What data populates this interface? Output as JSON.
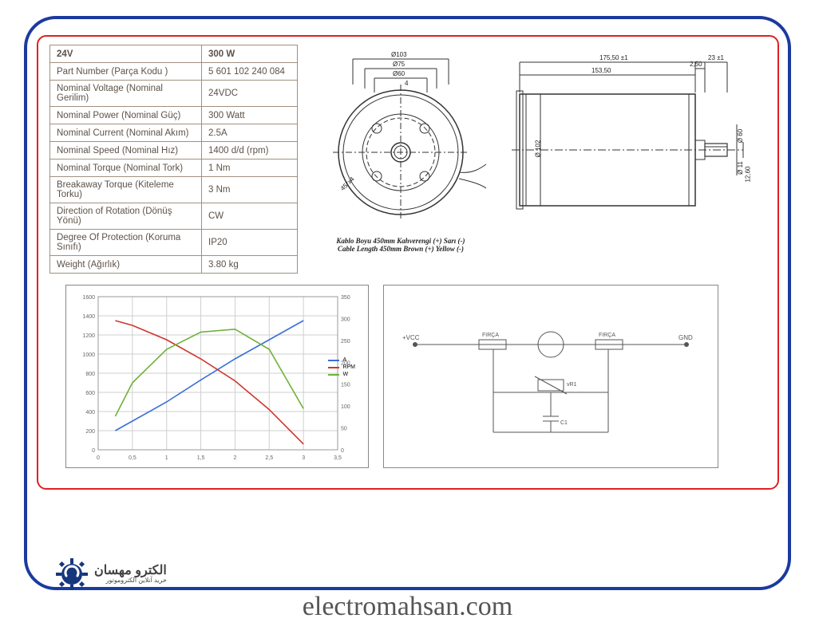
{
  "frame": {
    "outer_border_color": "#1a3a9e",
    "inner_border_color": "#e02020",
    "bg": "#ffffff"
  },
  "spec_table": {
    "header_col1": "24V",
    "header_col2": "300 W",
    "rows": [
      {
        "label": "Part Number (Parça Kodu )",
        "value": "5 601 102 240 084"
      },
      {
        "label": "Nominal Voltage (Nominal Gerilim)",
        "value": "24VDC"
      },
      {
        "label": "Nominal Power (Nominal Güç)",
        "value": "300 Watt"
      },
      {
        "label": "Nominal Current (Nominal Akım)",
        "value": "2.5A"
      },
      {
        "label": "Nominal Speed (Nominal Hız)",
        "value": "1400 d/d (rpm)"
      },
      {
        "label": "Nominal Torque (Nominal Tork)",
        "value": "1 Nm"
      },
      {
        "label": "Breakaway Torque (Kiteleme Torku)",
        "value": "3 Nm"
      },
      {
        "label": "Direction of Rotation (Dönüş Yönü)",
        "value": "CW"
      },
      {
        "label": "Degree Of Protection (Koruma Sınıfı)",
        "value": "IP20"
      },
      {
        "label": "Weight (Ağırlık)",
        "value": "3.80 kg"
      }
    ],
    "border_color": "#a09080",
    "text_color": "#5c5248",
    "font_size": 11.5
  },
  "front_view": {
    "dims": {
      "d103": "Ø103",
      "d75": "Ø75",
      "d60": "Ø60",
      "d4": "4",
      "angle45": "45°x4"
    },
    "stroke": "#333333",
    "centerline": "#333333"
  },
  "side_view": {
    "dims": {
      "len_total": "175,50 ±1",
      "len_body": "153,50",
      "shaft_step": "2,50",
      "shaft_len": "23 ±1",
      "d102": "Ø 102",
      "d11": "Ø 11",
      "flat": "12,60",
      "d60": "Ø 60"
    },
    "stroke": "#333333"
  },
  "cable_note": {
    "line_tr": "Kablo Boyu 450mm Kahverengi (+) Sarı (-)",
    "line_en": "Cable Length 450mm Brown (+) Yellow (-)"
  },
  "chart": {
    "type": "line",
    "x_ticks": [
      "0",
      "0,5",
      "1",
      "1,5",
      "2",
      "2,5",
      "3",
      "3,5"
    ],
    "y_left_ticks": [
      "0",
      "200",
      "400",
      "600",
      "800",
      "1000",
      "1200",
      "1400",
      "1600"
    ],
    "y_right_ticks": [
      "0",
      "50",
      "100",
      "150",
      "200",
      "250",
      "300",
      "350"
    ],
    "series": {
      "A": {
        "color": "#3a6fd8",
        "points": [
          [
            0.25,
            200
          ],
          [
            0.5,
            300
          ],
          [
            1,
            500
          ],
          [
            1.5,
            730
          ],
          [
            2,
            950
          ],
          [
            2.5,
            1150
          ],
          [
            3,
            1350
          ]
        ]
      },
      "RPM": {
        "color": "#d0352c",
        "points": [
          [
            0.25,
            1350
          ],
          [
            0.5,
            1300
          ],
          [
            1,
            1150
          ],
          [
            1.5,
            950
          ],
          [
            2,
            720
          ],
          [
            2.5,
            420
          ],
          [
            3,
            60
          ]
        ]
      },
      "W": {
        "color": "#6fb23a",
        "points": [
          [
            0.25,
            350
          ],
          [
            0.5,
            700
          ],
          [
            1,
            1050
          ],
          [
            1.5,
            1230
          ],
          [
            2,
            1260
          ],
          [
            2.5,
            1050
          ],
          [
            3,
            430
          ]
        ]
      }
    },
    "xlim": [
      0,
      3.5
    ],
    "ylim_left": [
      0,
      1600
    ],
    "ylim_right": [
      0,
      350
    ],
    "grid_color": "#cfcfcf",
    "bg": "#ffffff",
    "font_size": 7
  },
  "circuit": {
    "labels": {
      "vcc": "+VCC",
      "gnd": "GND",
      "brush1": "FIRÇA",
      "brush2": "FIRÇA",
      "varistor": "vR1",
      "cap": "C1"
    },
    "stroke": "#555555"
  },
  "branding": {
    "logo_primary_color": "#17377d",
    "logo_text_line1": "الکترو",
    "logo_text_line2": "مهسان",
    "logo_subtext": "خرید آنلاین الکتروموتور",
    "site_url": "electromahsan.com",
    "url_color": "#555555"
  }
}
